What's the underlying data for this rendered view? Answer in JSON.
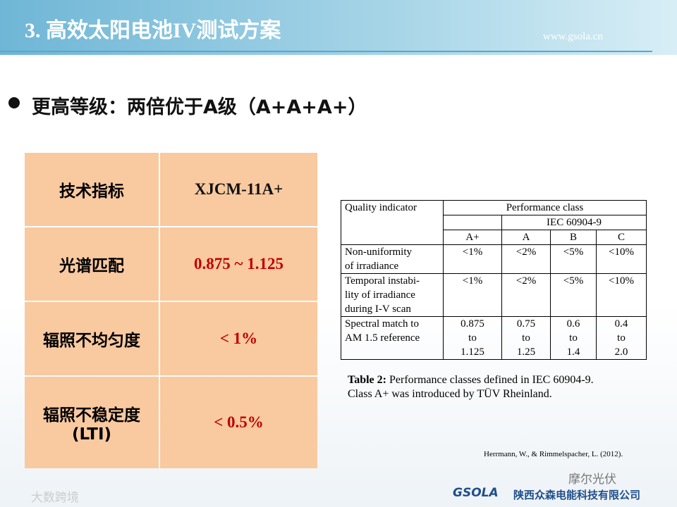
{
  "header": {
    "title": "3. 高效太阳电池IV测试方案",
    "url": "www.gsola.cn"
  },
  "bullet": "更高等级：两倍优于A级（A+A+A+）",
  "left_table": {
    "rows": [
      {
        "label": [
          "技术指标"
        ],
        "value": "XJCM-11A+"
      },
      {
        "label": [
          "光谱匹配"
        ],
        "value": "0.875 ~ 1.125"
      },
      {
        "label": [
          "辐照不均匀度"
        ],
        "value": "< 1%"
      },
      {
        "label": [
          "辐照不稳定度",
          "(LTI)"
        ],
        "value": "< 0.5%"
      }
    ]
  },
  "right_table": {
    "indicator_header": "Quality indicator",
    "class_header": "Performance class",
    "standard": "IEC 60904-9",
    "classes": [
      "A+",
      "A",
      "B",
      "C"
    ],
    "rows": [
      {
        "indicator": [
          "Non-uniformity",
          "of irradiance"
        ],
        "values": [
          [
            "<1%"
          ],
          [
            "<2%"
          ],
          [
            "<5%"
          ],
          [
            "<10%"
          ]
        ]
      },
      {
        "indicator": [
          "Temporal instabi-",
          "lity of irradiance",
          "during I-V scan"
        ],
        "values": [
          [
            "<1%"
          ],
          [
            "<2%"
          ],
          [
            "<5%"
          ],
          [
            "<10%"
          ]
        ]
      },
      {
        "indicator": [
          "Spectral match to",
          "AM 1.5 reference"
        ],
        "values": [
          [
            "0.875",
            "to",
            "1.125"
          ],
          [
            "0.75",
            "to",
            "1.25"
          ],
          [
            "0.6",
            "to",
            "1.4"
          ],
          [
            "0.4",
            "to",
            "2.0"
          ]
        ]
      }
    ]
  },
  "caption": {
    "label": "Table 2:",
    "lines": [
      "Performance classes defined in IEC 60904-9.",
      "Class A+ was introduced by TÜV Rheinland."
    ]
  },
  "citation": "Herrmann, W., & Rimmelspacher, L. (2012).",
  "footer": {
    "watermark": "摩尔光伏",
    "source": "大数跨境",
    "logo": "GSOLA",
    "company": "陕西众森电能科技有限公司"
  }
}
